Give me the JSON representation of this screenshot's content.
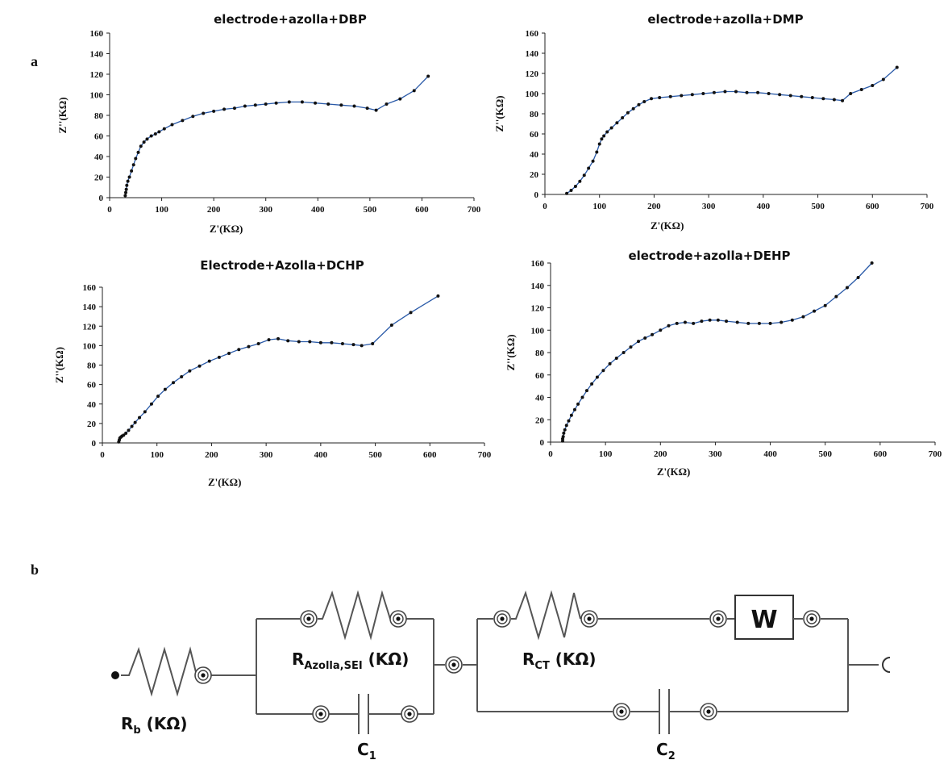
{
  "panel_a_label": "a",
  "panel_b_label": "b",
  "chart_data": [
    {
      "type": "line",
      "title": "electrode+azolla+DBP",
      "xlabel": "Z'(KΩ)",
      "ylabel": "Z''(KΩ)",
      "xlim": [
        0,
        700
      ],
      "ylim": [
        0,
        160
      ],
      "xticks": [
        0,
        100,
        200,
        300,
        400,
        500,
        600,
        700
      ],
      "yticks": [
        0,
        20,
        40,
        60,
        80,
        100,
        120,
        140,
        160
      ],
      "series": [
        {
          "color": "#2a5aa8",
          "x": [
            30,
            31,
            32,
            33,
            35,
            38,
            42,
            46,
            50,
            55,
            60,
            66,
            72,
            80,
            88,
            95,
            105,
            120,
            140,
            160,
            180,
            200,
            220,
            240,
            260,
            280,
            300,
            320,
            345,
            370,
            395,
            420,
            445,
            470,
            495,
            512,
            532,
            558,
            585,
            612
          ],
          "y": [
            2,
            5,
            8,
            12,
            16,
            20,
            26,
            32,
            38,
            44,
            50,
            54,
            57,
            60,
            62,
            64,
            67,
            71,
            75,
            79,
            82,
            84,
            86,
            87,
            89,
            90,
            91,
            92,
            93,
            93,
            92,
            91,
            90,
            89,
            87,
            85,
            91,
            96,
            104,
            118
          ]
        }
      ]
    },
    {
      "type": "line",
      "title": "electrode+azolla+DMP",
      "xlabel": "Z'(KΩ)",
      "ylabel": "Z''(KΩ)",
      "xlim": [
        0,
        700
      ],
      "ylim": [
        0,
        160
      ],
      "xticks": [
        0,
        100,
        200,
        300,
        400,
        500,
        600,
        700
      ],
      "yticks": [
        0,
        20,
        40,
        60,
        80,
        100,
        120,
        140,
        160
      ],
      "series": [
        {
          "color": "#2a5aa8",
          "x": [
            40,
            48,
            56,
            64,
            72,
            80,
            88,
            95,
            100,
            104,
            108,
            114,
            122,
            132,
            142,
            152,
            162,
            172,
            182,
            195,
            210,
            230,
            250,
            270,
            290,
            310,
            330,
            350,
            370,
            390,
            410,
            430,
            450,
            470,
            490,
            510,
            530,
            545,
            560,
            580,
            600,
            620,
            645
          ],
          "y": [
            1,
            4,
            8,
            13,
            19,
            26,
            33,
            42,
            50,
            55,
            58,
            62,
            66,
            71,
            76,
            81,
            85,
            89,
            92,
            95,
            96,
            97,
            98,
            99,
            100,
            101,
            102,
            102,
            101,
            101,
            100,
            99,
            98,
            97,
            96,
            95,
            94,
            93,
            100,
            104,
            108,
            114,
            126
          ]
        }
      ]
    },
    {
      "type": "line",
      "title": "Electrode+Azolla+DCHP",
      "xlabel": "Z'(KΩ)",
      "ylabel": "Z''(KΩ)",
      "xlim": [
        0,
        700
      ],
      "ylim": [
        0,
        160
      ],
      "xticks": [
        0,
        100,
        200,
        300,
        400,
        500,
        600,
        700
      ],
      "yticks": [
        0,
        20,
        40,
        60,
        80,
        100,
        120,
        140,
        160
      ],
      "series": [
        {
          "color": "#2a5aa8",
          "x": [
            30,
            31,
            32,
            34,
            36,
            39,
            43,
            48,
            54,
            60,
            68,
            78,
            90,
            102,
            115,
            130,
            145,
            160,
            178,
            196,
            214,
            232,
            250,
            268,
            286,
            305,
            322,
            340,
            360,
            380,
            400,
            420,
            440,
            460,
            475,
            495,
            530,
            565,
            615
          ],
          "y": [
            1,
            3,
            5,
            6,
            7,
            8,
            10,
            13,
            17,
            21,
            26,
            32,
            40,
            48,
            55,
            62,
            68,
            74,
            79,
            84,
            88,
            92,
            96,
            99,
            102,
            106,
            107,
            105,
            104,
            104,
            103,
            103,
            102,
            101,
            100,
            102,
            121,
            134,
            151
          ]
        }
      ]
    },
    {
      "type": "line",
      "title": "electrode+azolla+DEHP",
      "xlabel": "Z'(KΩ)",
      "ylabel": "Z''(KΩ)",
      "xlim": [
        0,
        700
      ],
      "ylim": [
        0,
        160
      ],
      "xticks": [
        0,
        100,
        200,
        300,
        400,
        500,
        600,
        700
      ],
      "yticks": [
        0,
        20,
        40,
        60,
        80,
        100,
        120,
        140,
        160
      ],
      "series": [
        {
          "color": "#2a5aa8",
          "x": [
            22,
            22,
            23,
            24,
            26,
            29,
            33,
            38,
            44,
            50,
            58,
            66,
            75,
            85,
            96,
            108,
            120,
            133,
            146,
            160,
            172,
            185,
            200,
            215,
            230,
            245,
            260,
            275,
            290,
            305,
            320,
            340,
            360,
            380,
            400,
            420,
            440,
            460,
            480,
            500,
            520,
            540,
            560,
            585
          ],
          "y": [
            1,
            3,
            5,
            8,
            11,
            15,
            19,
            24,
            29,
            34,
            40,
            46,
            52,
            58,
            64,
            70,
            75,
            80,
            85,
            90,
            93,
            96,
            100,
            104,
            106,
            107,
            106,
            108,
            109,
            109,
            108,
            107,
            106,
            106,
            106,
            107,
            109,
            112,
            117,
            122,
            130,
            138,
            147,
            160
          ]
        }
      ]
    }
  ],
  "circuit": {
    "rb_label": "R",
    "rb_sub": "b",
    "rb_unit": " (KΩ)",
    "rsei_label": "R",
    "rsei_sub": "Azolla,SEI",
    "rsei_unit": " (KΩ)",
    "c1_label": "C",
    "c1_sub": "1",
    "rct_label": "R",
    "rct_sub": "CT",
    "rct_unit": " (KΩ)",
    "w_label": "W",
    "c2_label": "C",
    "c2_sub": "2"
  }
}
